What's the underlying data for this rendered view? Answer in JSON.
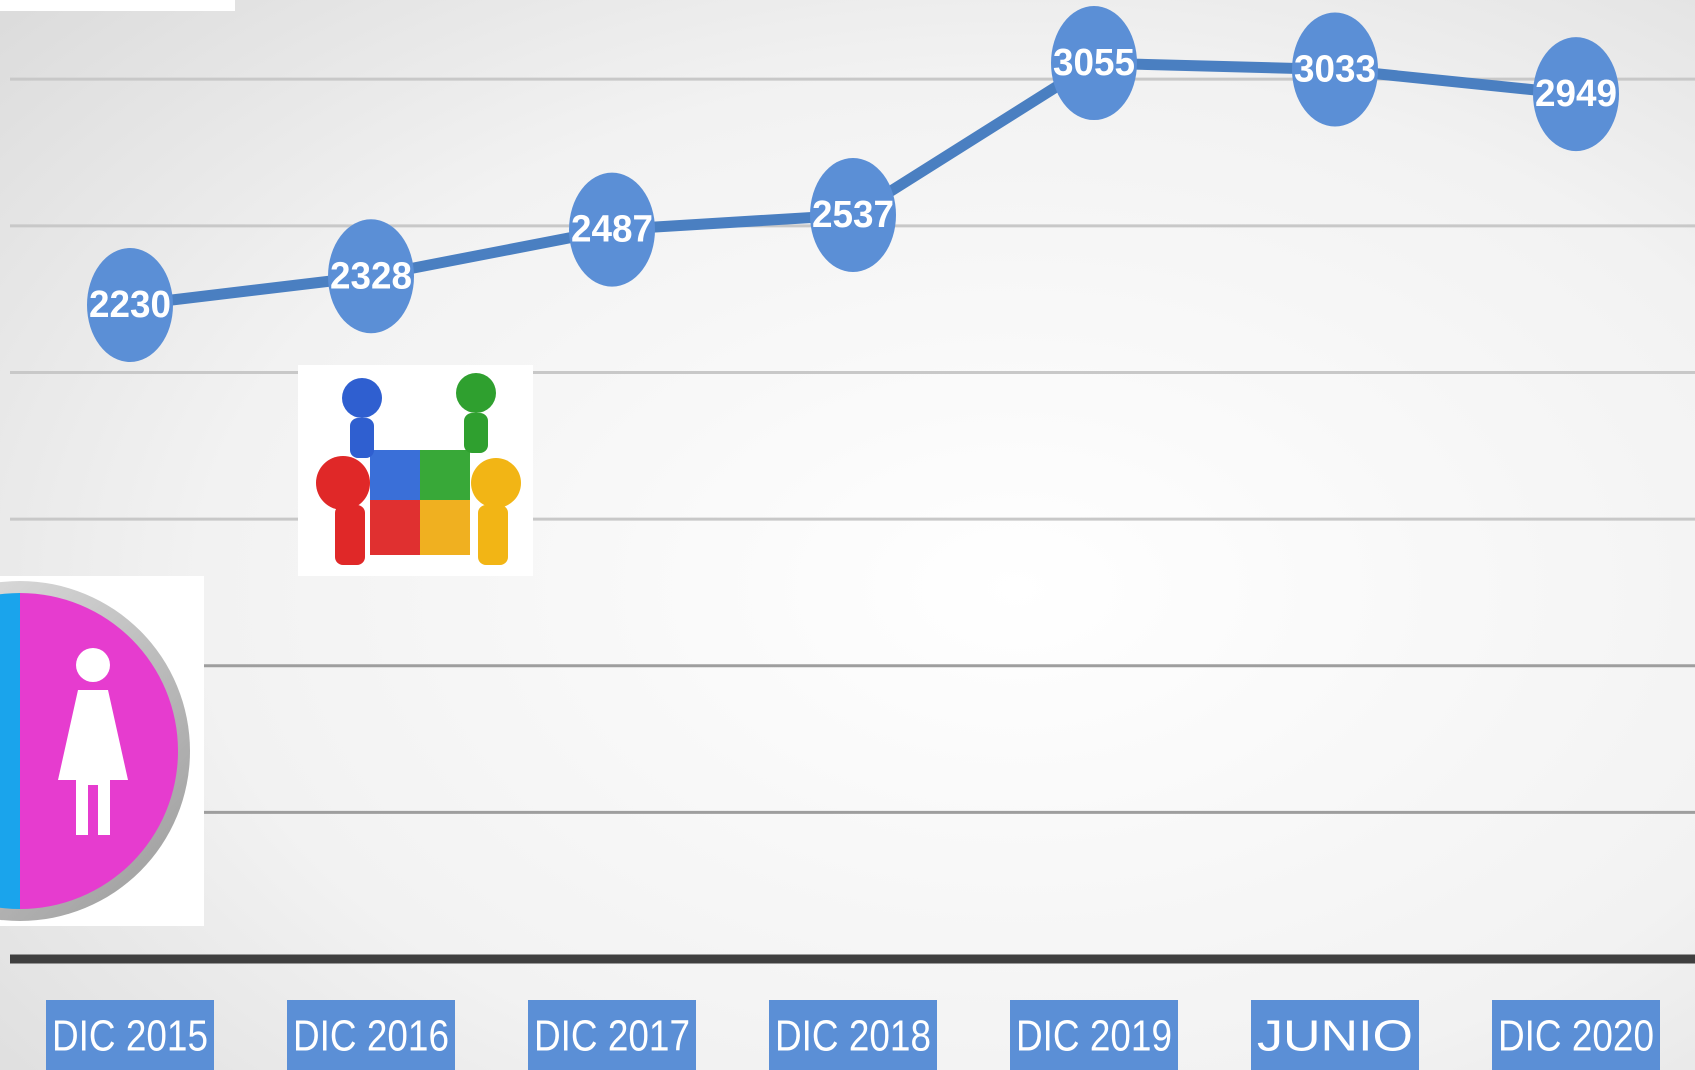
{
  "chart_data": {
    "type": "line",
    "categories": [
      "DIC 2015",
      "DIC 2016",
      "DIC 2017",
      "DIC 2018",
      "DIC 2019",
      "JUNIO",
      "DIC 2020"
    ],
    "series": [
      {
        "color": "#4a7fc1",
        "values": [
          2230,
          2328,
          2487,
          2537,
          3055,
          3033,
          2949
        ]
      }
    ],
    "ylim": [
      0,
      3270
    ],
    "yticks": [
      0,
      500,
      1000,
      1500,
      2000,
      2500,
      3000
    ],
    "grid": true
  }
}
